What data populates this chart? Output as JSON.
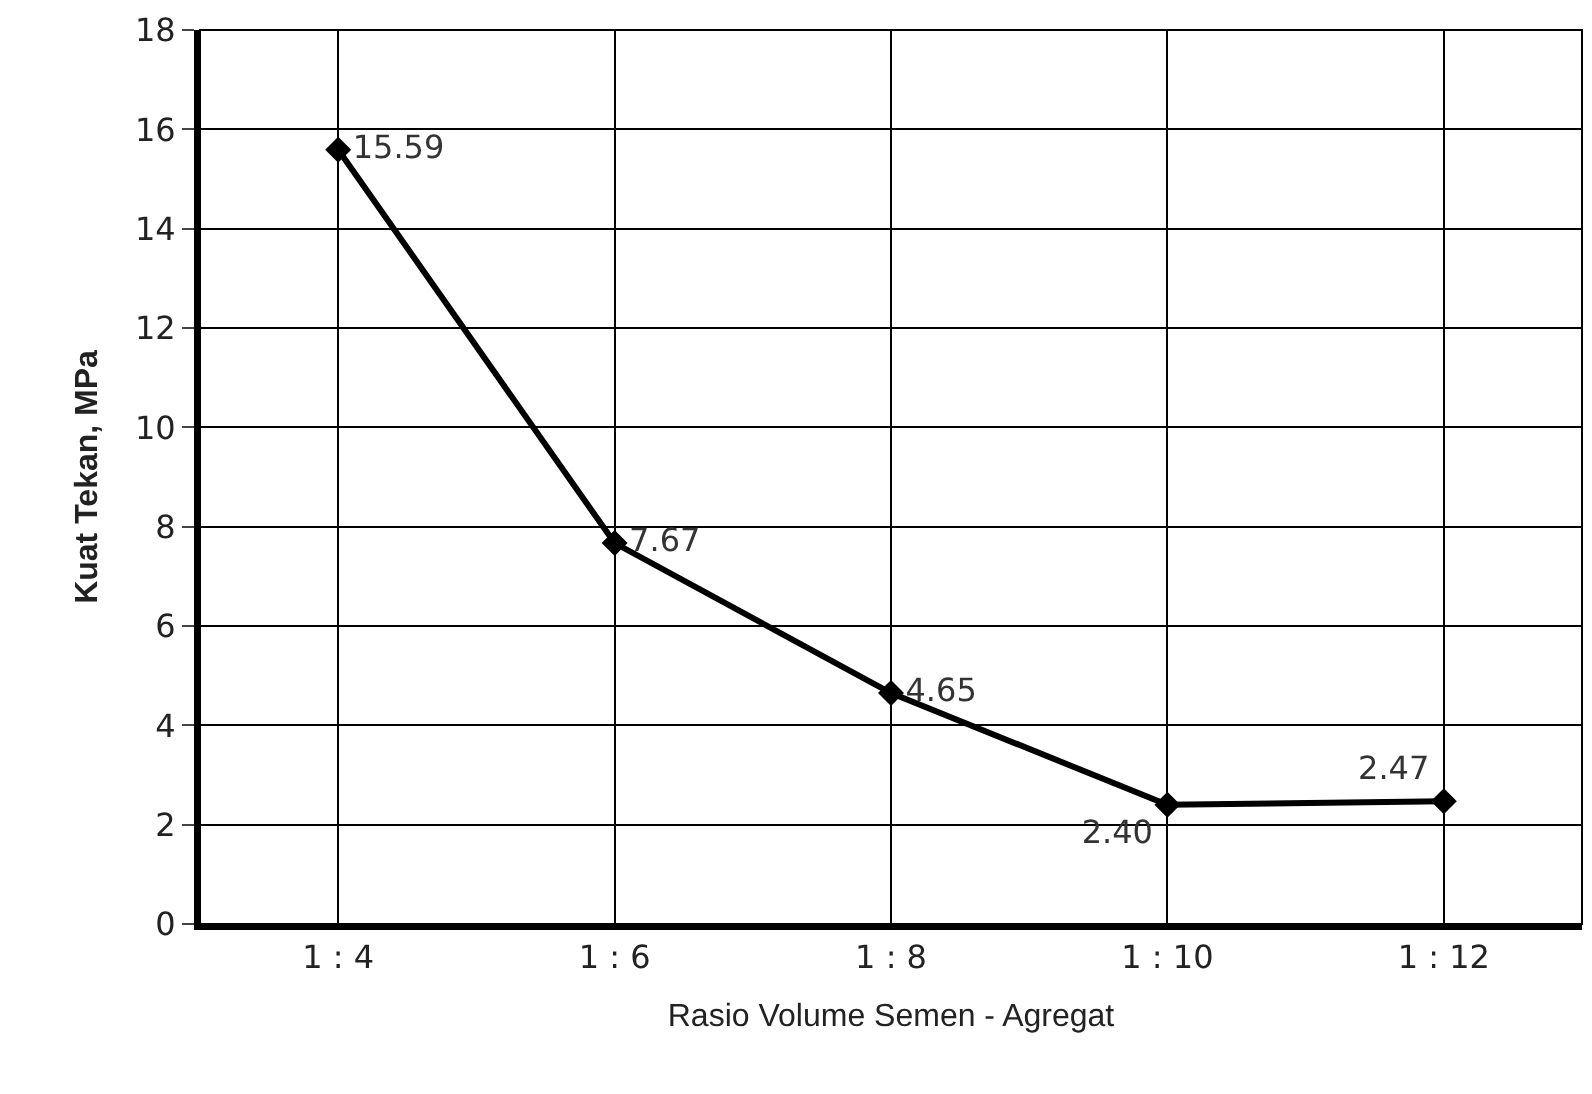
{
  "chart_data": {
    "type": "line",
    "xlabel": "Rasio Volume Semen - Agregat",
    "ylabel": "Kuat Tekan, MPa",
    "categories": [
      "1 : 4",
      "1 : 6",
      "1 : 8",
      "1 : 10",
      "1 : 12"
    ],
    "series": [
      {
        "color": "#000000",
        "values": [
          15.59,
          7.67,
          4.65,
          2.4,
          2.47
        ],
        "value_labels": [
          "15.59",
          "7.67",
          "4.65",
          "2.40",
          "2.47"
        ]
      }
    ],
    "ylim": [
      0,
      18
    ],
    "yticks": [
      0,
      2,
      4,
      6,
      8,
      10,
      12,
      14,
      16,
      18
    ],
    "grid": true,
    "legend": false,
    "marker": "diamond",
    "line_style": "solid"
  }
}
